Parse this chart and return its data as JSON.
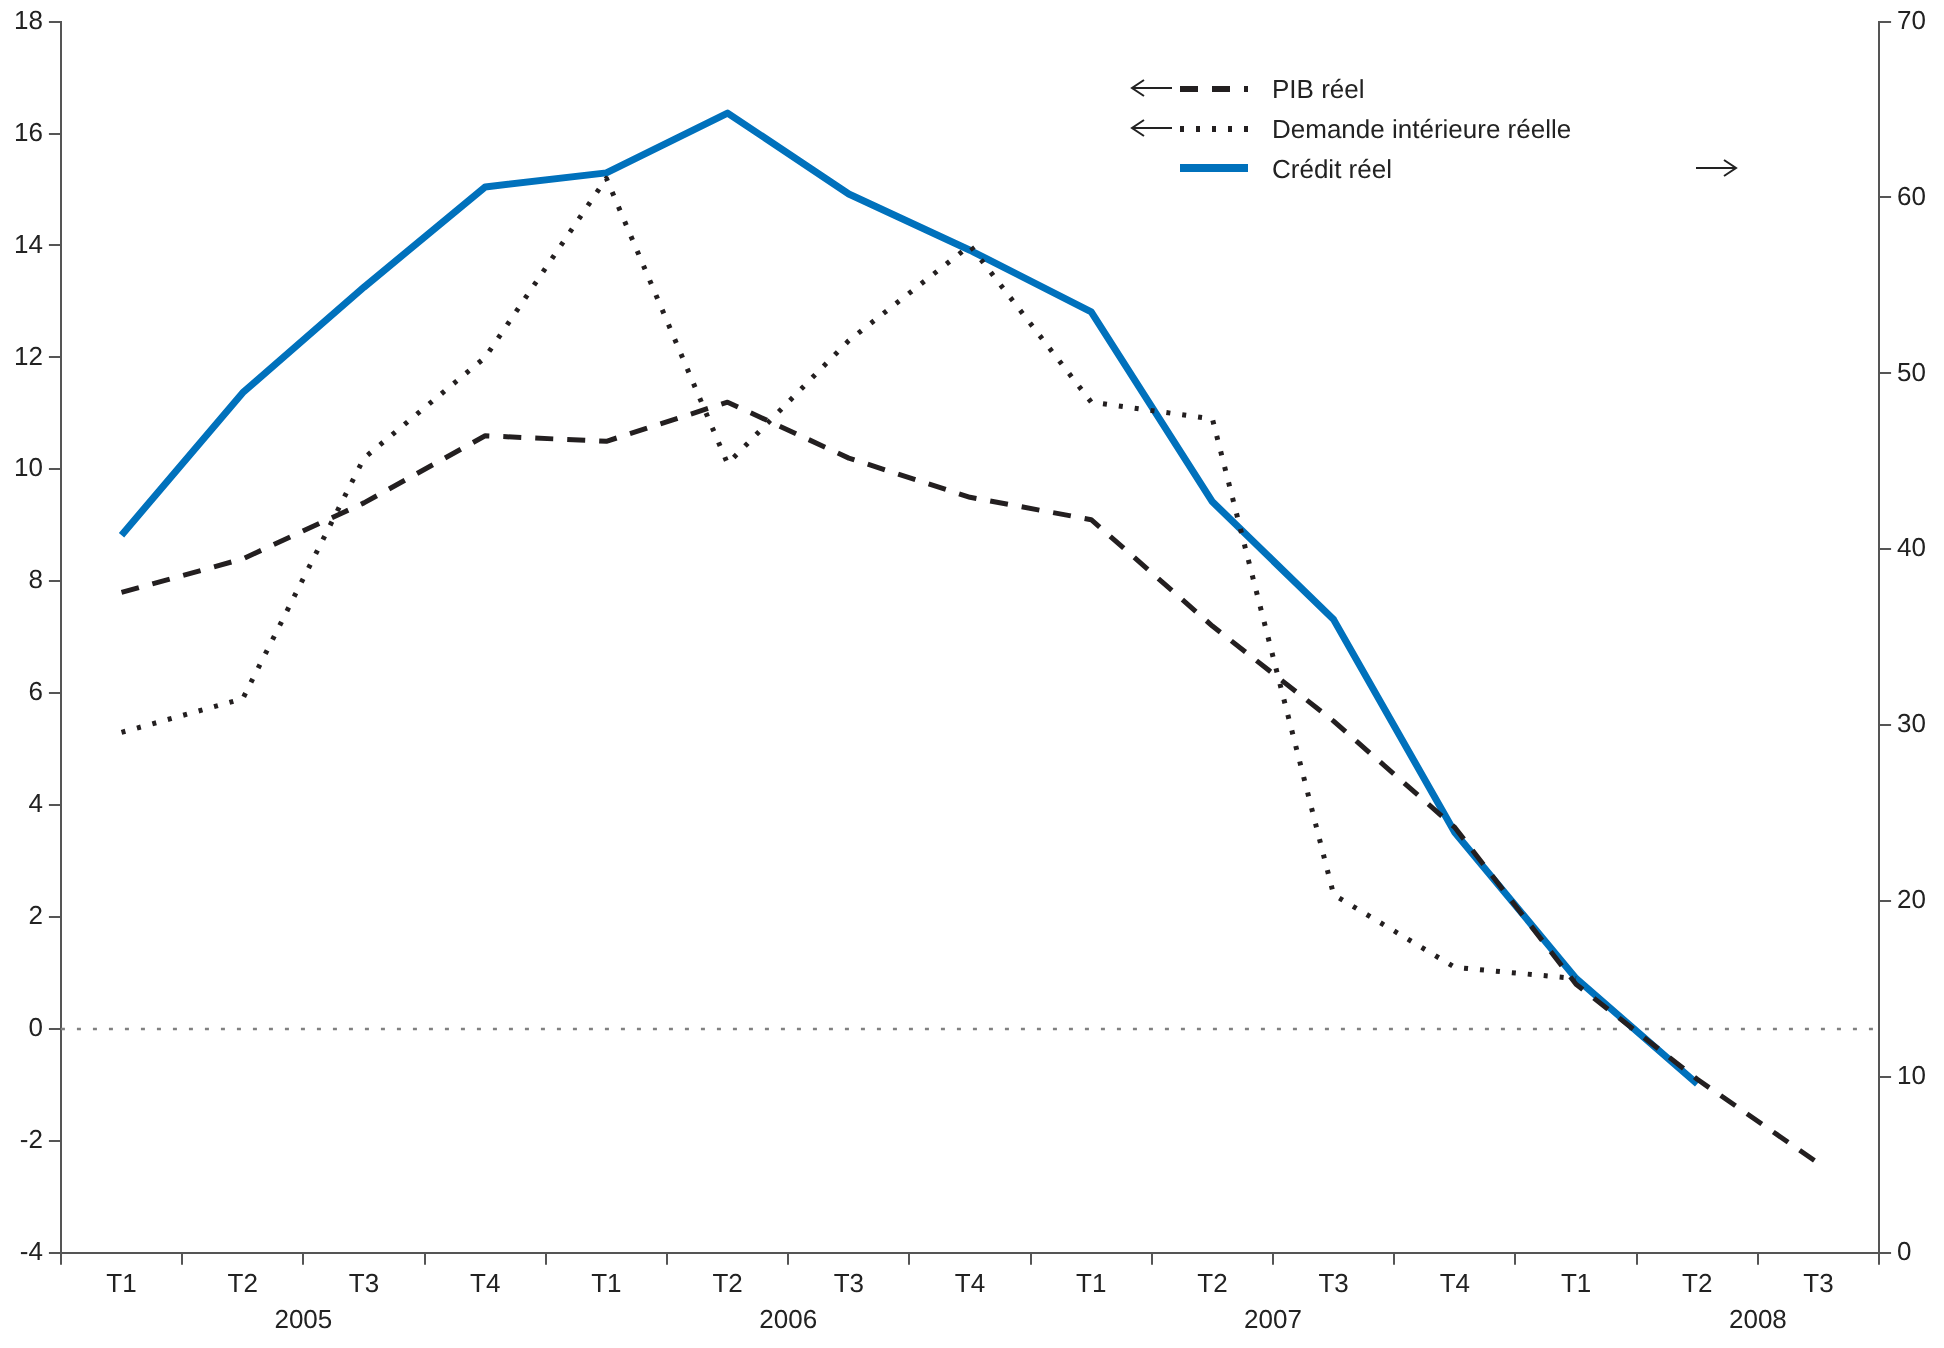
{
  "chart_data": {
    "type": "line",
    "categories": [
      "T1",
      "T2",
      "T3",
      "T4",
      "T1",
      "T2",
      "T3",
      "T4",
      "T1",
      "T2",
      "T3",
      "T4",
      "T1",
      "T2",
      "T3"
    ],
    "annotations": [
      "2005",
      "2006",
      "2007",
      "2008"
    ],
    "series": [
      {
        "name": "PIB réel",
        "color": "#231f20",
        "line_style": "dashed",
        "axis": "y",
        "values": [
          7.8,
          8.4,
          9.4,
          10.6,
          10.5,
          11.2,
          10.2,
          9.5,
          9.1,
          7.2,
          5.5,
          3.6,
          0.8,
          -0.9,
          -2.4
        ]
      },
      {
        "name": "Demande intérieure réelle",
        "color": "#231f20",
        "line_style": "dotted",
        "axis": "y",
        "values": [
          5.3,
          5.9,
          10.2,
          12.0,
          15.2,
          10.1,
          12.3,
          14.0,
          11.2,
          10.9,
          2.4,
          1.1,
          0.9,
          null,
          null
        ]
      },
      {
        "name": "Crédit réel",
        "color": "#0071bc",
        "line_style": "solid",
        "axis": "y2",
        "values": [
          40.8,
          48.9,
          54.9,
          60.6,
          61.4,
          64.8,
          60.2,
          57.0,
          53.5,
          42.7,
          36.0,
          23.9,
          15.6,
          9.6,
          null
        ]
      }
    ],
    "ylim": [
      -4,
      18
    ],
    "yticks": [
      -4,
      -2,
      0,
      2,
      4,
      6,
      8,
      10,
      12,
      14,
      16,
      18
    ],
    "y2lim": [
      0,
      70
    ],
    "y2ticks": [
      0,
      10,
      20,
      30,
      40,
      50,
      60,
      70
    ],
    "ref_lines": [
      {
        "axis": "y",
        "value": 0,
        "color": "#808080",
        "line_style": "dotted"
      }
    ],
    "grid": false,
    "legend": "top right",
    "marker": "none"
  }
}
